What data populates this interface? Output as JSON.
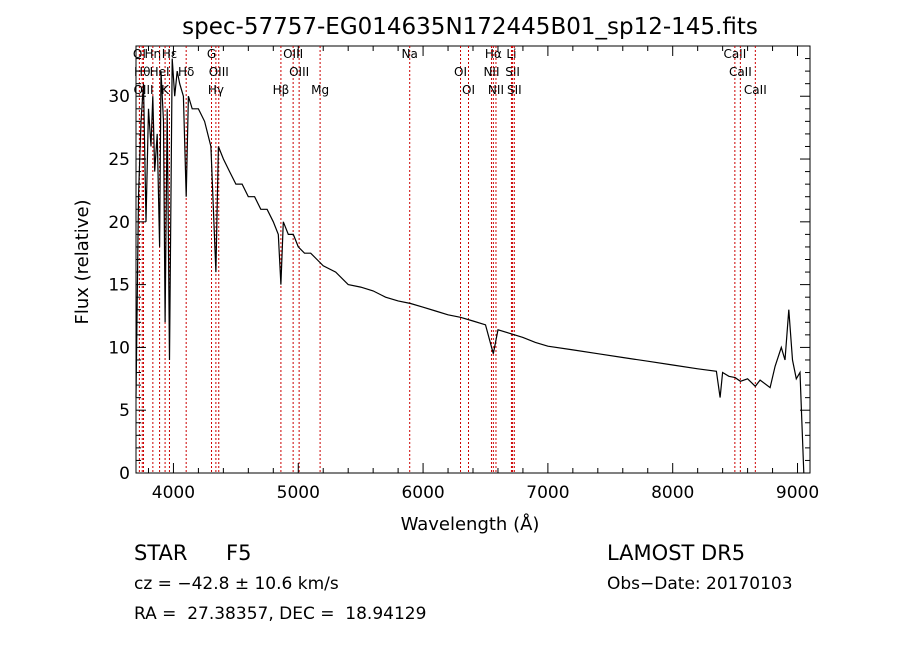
{
  "chart_data": {
    "type": "line",
    "title": "spec-57757-EG014635N172445B01_sp12-145.fits",
    "xlabel": "Wavelength (Å)",
    "ylabel": "Flux (relative)",
    "xlim": [
      3700,
      9100
    ],
    "ylim": [
      0,
      34
    ],
    "x_ticks": [
      4000,
      5000,
      6000,
      7000,
      8000,
      9000
    ],
    "y_ticks": [
      0,
      5,
      10,
      15,
      20,
      25,
      30
    ],
    "grid": false,
    "series": [
      {
        "x": [
          3700,
          3720,
          3740,
          3760,
          3780,
          3800,
          3820,
          3835,
          3850,
          3870,
          3889,
          3900,
          3920,
          3933,
          3950,
          3968,
          3990,
          4010,
          4030,
          4050,
          4080,
          4102,
          4120,
          4150,
          4200,
          4250,
          4300,
          4340,
          4360,
          4400,
          4450,
          4500,
          4550,
          4600,
          4650,
          4700,
          4750,
          4800,
          4840,
          4861,
          4880,
          4920,
          4960,
          5000,
          5050,
          5100,
          5150,
          5200,
          5300,
          5400,
          5500,
          5600,
          5700,
          5800,
          5900,
          6000,
          6100,
          6200,
          6300,
          6400,
          6500,
          6563,
          6600,
          6700,
          6800,
          6900,
          7000,
          7200,
          7400,
          7600,
          7800,
          8000,
          8200,
          8350,
          8380,
          8400,
          8450,
          8500,
          8542,
          8600,
          8662,
          8700,
          8780,
          8820,
          8870,
          8900,
          8930,
          8960,
          8990,
          9020,
          9050
        ],
        "y": [
          6,
          22,
          28,
          31,
          20,
          29,
          26,
          30,
          24,
          27,
          18,
          32,
          28,
          12,
          29,
          9,
          33,
          30,
          32,
          31,
          30,
          22,
          30,
          29,
          29,
          28,
          26,
          16,
          26,
          25,
          24,
          23,
          23,
          22,
          22,
          21,
          21,
          20,
          19,
          15,
          20,
          19,
          19,
          18,
          17.5,
          17.5,
          17,
          16.5,
          16,
          15,
          14.8,
          14.5,
          14,
          13.7,
          13.5,
          13.2,
          12.9,
          12.6,
          12.4,
          12.1,
          11.8,
          9.5,
          11.4,
          11.1,
          10.8,
          10.4,
          10.1,
          9.8,
          9.5,
          9.2,
          8.9,
          8.6,
          8.3,
          8.1,
          6,
          8,
          7.7,
          7.6,
          7.3,
          7.5,
          6.9,
          7.4,
          6.8,
          8.5,
          10,
          9,
          13,
          9,
          7.5,
          8,
          0
        ]
      }
    ],
    "lines": [
      {
        "label": "OI",
        "x": 3727
      },
      {
        "label": "Hθ",
        "x": 3750
      },
      {
        "label": "OIII",
        "x": 3760
      },
      {
        "label": "Hη",
        "x": 3835
      },
      {
        "label": "HeI",
        "x": 3889
      },
      {
        "label": "K",
        "x": 3933
      },
      {
        "label": "Hε",
        "x": 3968
      },
      {
        "label": "Hδ",
        "x": 4102
      },
      {
        "label": "Hγ",
        "x": 4340
      },
      {
        "label": "G",
        "x": 4305
      },
      {
        "label": "OIII",
        "x": 4363
      },
      {
        "label": "Hβ",
        "x": 4861
      },
      {
        "label": "OIII",
        "x": 4959
      },
      {
        "label": "OIII",
        "x": 5007
      },
      {
        "label": "Mg",
        "x": 5175
      },
      {
        "label": "Na",
        "x": 5893
      },
      {
        "label": "OI",
        "x": 6300
      },
      {
        "label": "OI",
        "x": 6364
      },
      {
        "label": "Hα",
        "x": 6563
      },
      {
        "label": "NII",
        "x": 6548
      },
      {
        "label": "NII",
        "x": 6584
      },
      {
        "label": "Li",
        "x": 6708
      },
      {
        "label": "SII",
        "x": 6717
      },
      {
        "label": "SII",
        "x": 6731
      },
      {
        "label": "CaII",
        "x": 8498
      },
      {
        "label": "CaII",
        "x": 8542
      },
      {
        "label": "CaII",
        "x": 8662
      }
    ]
  },
  "info": {
    "object_class": "STAR",
    "subclass": "F5",
    "survey": "LAMOST DR5",
    "cz": "cz = −42.8 ± 10.6 km/s",
    "obs_date": "Obs−Date: 20170103",
    "coords": "RA =  27.38357, DEC =  18.94129"
  }
}
